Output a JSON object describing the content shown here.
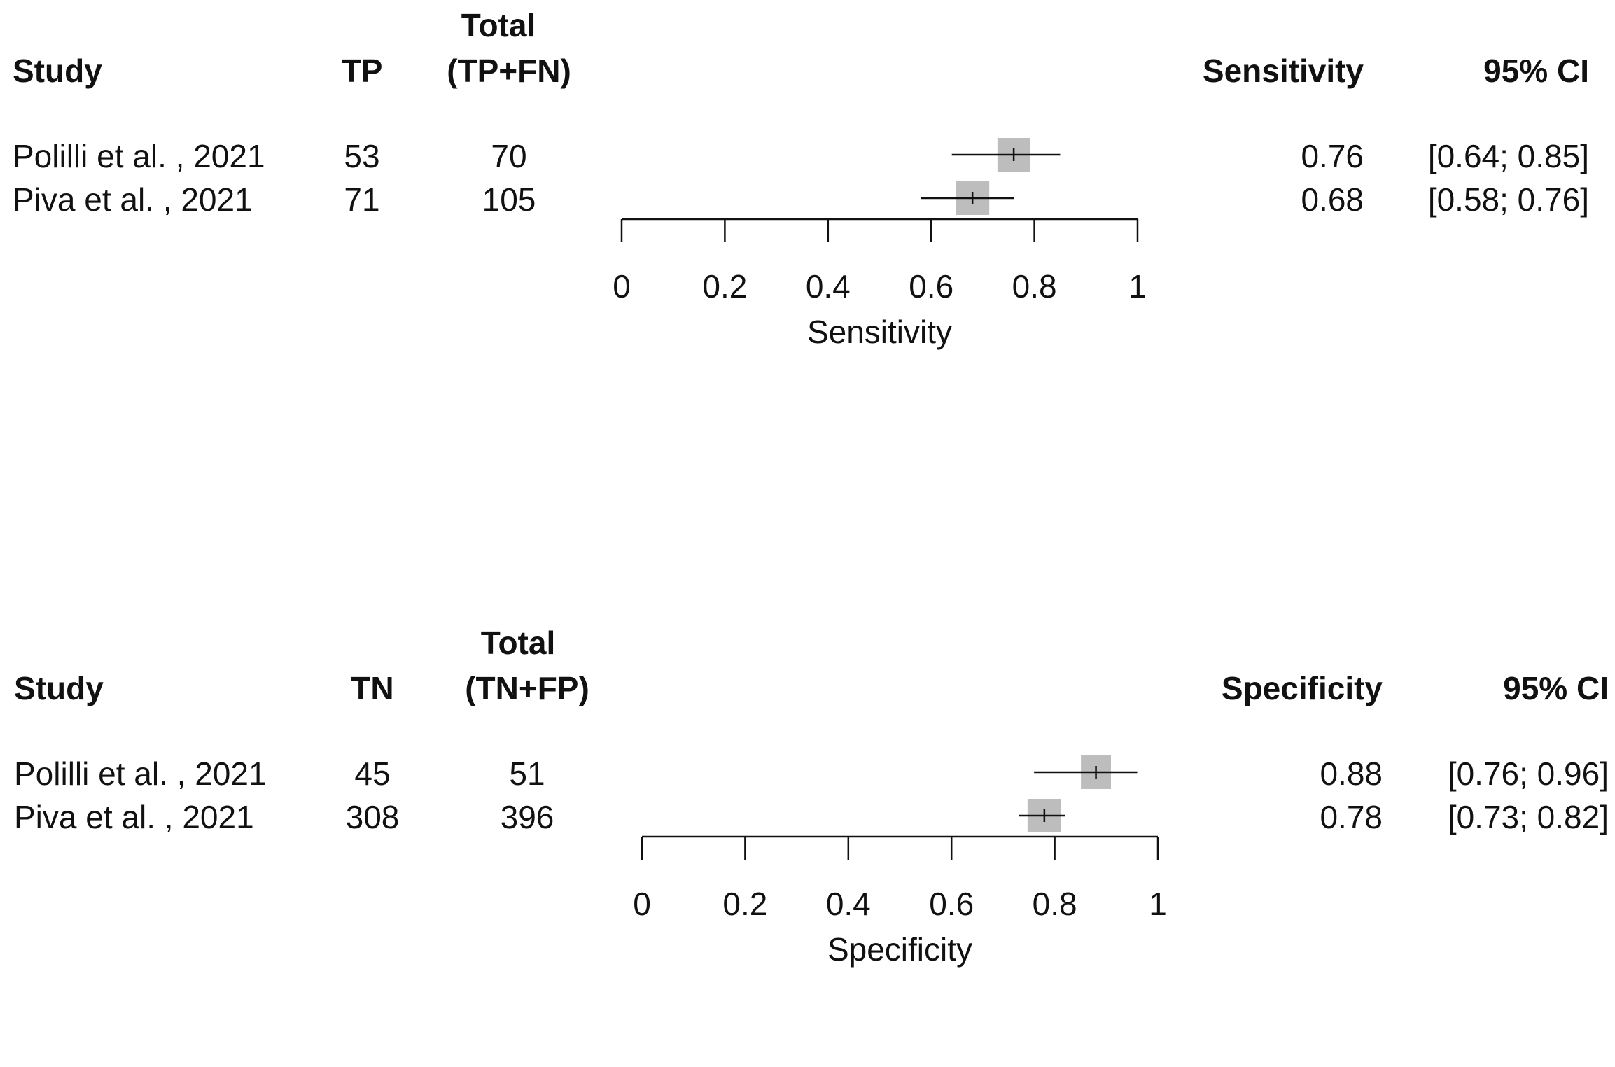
{
  "chart_data": [
    {
      "type": "forest",
      "measure": "Sensitivity",
      "xlabel": "Sensitivity",
      "xlim": [
        0,
        1
      ],
      "ticks": [
        0,
        0.2,
        0.4,
        0.6,
        0.8,
        1
      ],
      "tick_labels": [
        "0",
        "0.2",
        "0.4",
        "0.6",
        "0.8",
        "1"
      ],
      "columns": {
        "study": "Study",
        "count": "TP",
        "total_line1": "Total",
        "total_line2": "(TP+FN)",
        "estimate": "Sensitivity",
        "ci": "95% CI"
      },
      "studies": [
        {
          "name": "Polilli et al. , 2021",
          "count": "53",
          "total": "70",
          "estimate": 0.76,
          "lower": 0.64,
          "upper": 0.85,
          "estimate_text": "0.76",
          "ci_text": "[0.64; 0.85]",
          "weight": 70
        },
        {
          "name": "Piva et al. , 2021",
          "count": "71",
          "total": "105",
          "estimate": 0.68,
          "lower": 0.58,
          "upper": 0.76,
          "estimate_text": "0.68",
          "ci_text": "[0.58; 0.76]",
          "weight": 105
        }
      ]
    },
    {
      "type": "forest",
      "measure": "Specificity",
      "xlabel": "Specificity",
      "xlim": [
        0,
        1
      ],
      "ticks": [
        0,
        0.2,
        0.4,
        0.6,
        0.8,
        1
      ],
      "tick_labels": [
        "0",
        "0.2",
        "0.4",
        "0.6",
        "0.8",
        "1"
      ],
      "columns": {
        "study": "Study",
        "count": "TN",
        "total_line1": "Total",
        "total_line2": "(TN+FP)",
        "estimate": "Specificity",
        "ci": "95% CI"
      },
      "studies": [
        {
          "name": "Polilli et al. , 2021",
          "count": "45",
          "total": "51",
          "estimate": 0.88,
          "lower": 0.76,
          "upper": 0.96,
          "estimate_text": "0.88",
          "ci_text": "[0.76; 0.96]",
          "weight": 51
        },
        {
          "name": "Piva et al. , 2021",
          "count": "308",
          "total": "396",
          "estimate": 0.78,
          "lower": 0.73,
          "upper": 0.82,
          "estimate_text": "0.78",
          "ci_text": "[0.73; 0.82]",
          "weight": 396
        }
      ]
    }
  ],
  "colors": {
    "box": "#bdbdbd",
    "line": "#111111"
  }
}
